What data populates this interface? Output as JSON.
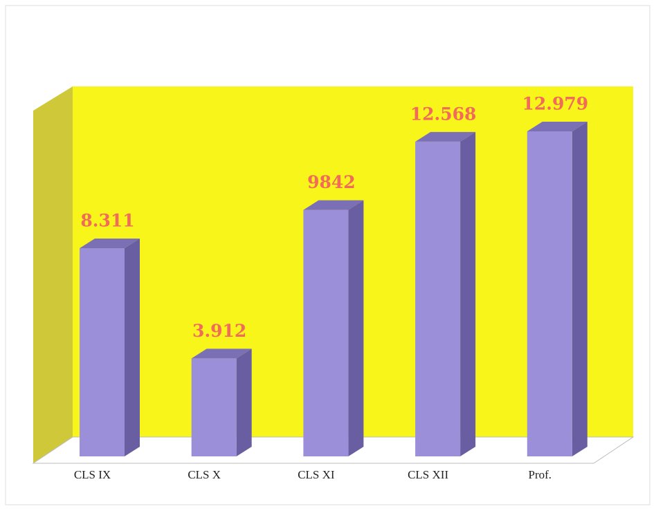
{
  "chart_data": {
    "type": "bar3d",
    "categories": [
      "CLS IX",
      "CLS X",
      "CLS XI",
      "CLS XII",
      "Prof."
    ],
    "values": [
      8311,
      3912,
      9842,
      12568,
      12979
    ],
    "value_labels": [
      "8.311",
      "3.912",
      "9842",
      "12.568",
      "12.979"
    ],
    "color": "#9a8fd8"
  }
}
